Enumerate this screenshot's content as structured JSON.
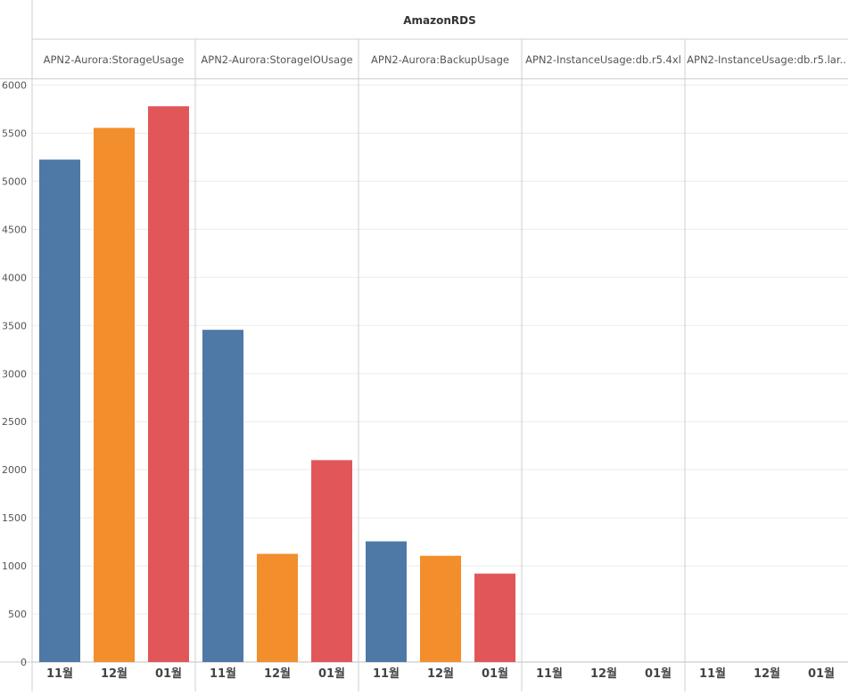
{
  "chart_data": {
    "type": "bar",
    "title": "AmazonRDS",
    "panels": [
      "APN2-Aurora:StorageUsage",
      "APN2-Aurora:StorageIOUsage",
      "APN2-Aurora:BackupUsage",
      "APN2-InstanceUsage:db.r5.4xl",
      "APN2-InstanceUsage:db.r5.lar.."
    ],
    "categories": [
      "11월",
      "12월",
      "01월"
    ],
    "values": [
      [
        5225,
        5555,
        5780
      ],
      [
        3455,
        1125,
        2100
      ],
      [
        1255,
        1105,
        920
      ],
      [
        0,
        0,
        0
      ],
      [
        0,
        0,
        0
      ]
    ],
    "category_colors": [
      "#4e79a7",
      "#f28e2b",
      "#e15759"
    ],
    "y_ticks": [
      0,
      500,
      1000,
      1500,
      2000,
      2500,
      3000,
      3500,
      4000,
      4500,
      5000,
      5500,
      6000
    ],
    "ylim": [
      0,
      6000
    ],
    "grid": true,
    "legend": "none"
  }
}
